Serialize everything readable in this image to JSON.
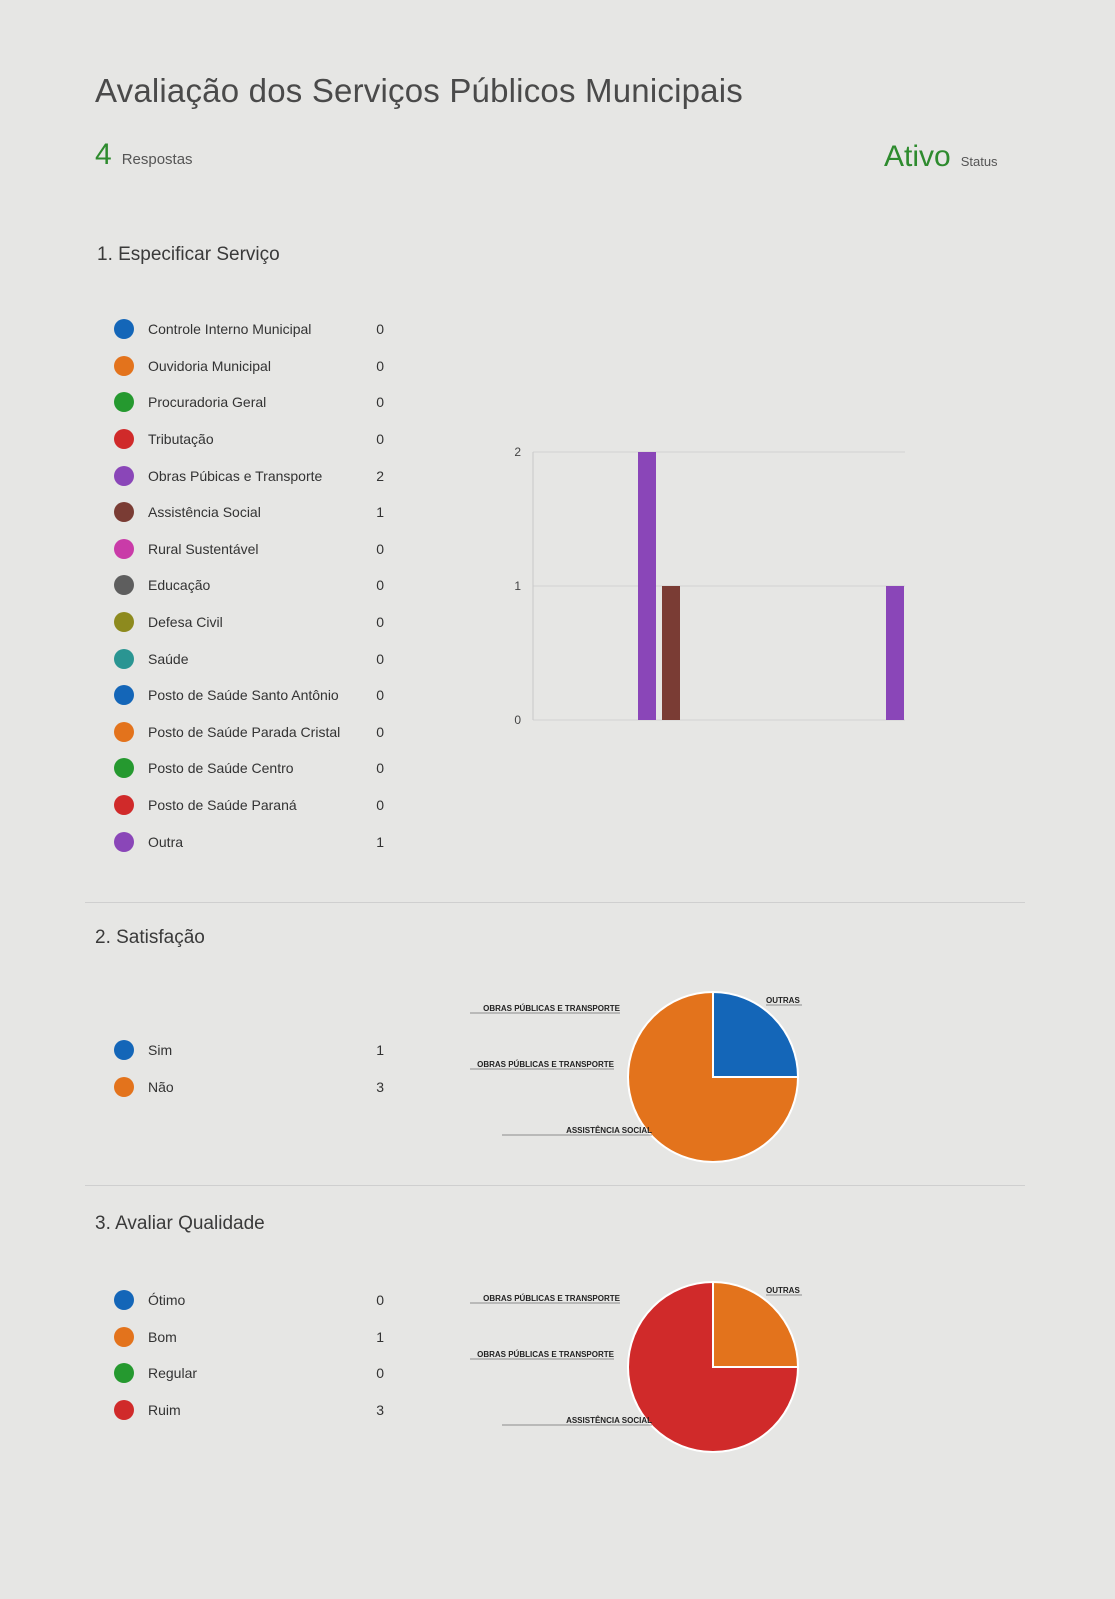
{
  "form": {
    "title": "Avaliação dos Serviços Públicos Municipais",
    "responses_count": "4",
    "responses_label": "Respostas",
    "status_value": "Ativo",
    "status_label": "Status"
  },
  "colors": {
    "blue": "#1466b8",
    "orange": "#e3731c",
    "green": "#25992f",
    "red": "#d02a2a",
    "purple": "#8a46b8",
    "brown": "#7a3c34",
    "magenta": "#c93ba8",
    "gray": "#5e5e5e",
    "olive": "#8d8a1e",
    "teal": "#2a9592"
  },
  "questions": [
    {
      "number_title": "1. Especificar Serviço",
      "options": [
        {
          "label": "Controle Interno Municipal",
          "count": "0",
          "color": "#1466b8"
        },
        {
          "label": "Ouvidoria Municipal",
          "count": "0",
          "color": "#e3731c"
        },
        {
          "label": "Procuradoria Geral",
          "count": "0",
          "color": "#25992f"
        },
        {
          "label": "Tributação",
          "count": "0",
          "color": "#d02a2a"
        },
        {
          "label": "Obras Púbicas e Transporte",
          "count": "2",
          "color": "#8a46b8"
        },
        {
          "label": "Assistência Social",
          "count": "1",
          "color": "#7a3c34"
        },
        {
          "label": "Rural Sustentável",
          "count": "0",
          "color": "#c93ba8"
        },
        {
          "label": "Educação",
          "count": "0",
          "color": "#5e5e5e"
        },
        {
          "label": "Defesa Civil",
          "count": "0",
          "color": "#8d8a1e"
        },
        {
          "label": "Saúde",
          "count": "0",
          "color": "#2a9592"
        },
        {
          "label": "Posto de Saúde Santo Antônio",
          "count": "0",
          "color": "#1466b8"
        },
        {
          "label": "Posto de Saúde Parada Cristal",
          "count": "0",
          "color": "#e3731c"
        },
        {
          "label": "Posto de Saúde Centro",
          "count": "0",
          "color": "#25992f"
        },
        {
          "label": "Posto de Saúde Paraná",
          "count": "0",
          "color": "#d02a2a"
        },
        {
          "label": "Outra",
          "count": "1",
          "color": "#8a46b8"
        }
      ]
    },
    {
      "number_title": "2. Satisfação",
      "options": [
        {
          "label": "Sim",
          "count": "1",
          "color": "#1466b8"
        },
        {
          "label": "Não",
          "count": "3",
          "color": "#e3731c"
        }
      ]
    },
    {
      "number_title": "3. Avaliar Qualidade",
      "options": [
        {
          "label": "Ótimo",
          "count": "0",
          "color": "#1466b8"
        },
        {
          "label": "Bom",
          "count": "1",
          "color": "#e3731c"
        },
        {
          "label": "Regular",
          "count": "0",
          "color": "#25992f"
        },
        {
          "label": "Ruim",
          "count": "3",
          "color": "#d02a2a"
        }
      ]
    }
  ],
  "chart_data": [
    {
      "type": "bar",
      "y_ticks": [
        "0",
        "1",
        "2"
      ],
      "ylim": [
        0,
        2
      ],
      "grid": true,
      "bars": [
        {
          "value": 2,
          "color": "#8a46b8"
        },
        {
          "value": 1,
          "color": "#7a3c34"
        },
        {
          "value": 1,
          "color": "#8a46b8"
        }
      ]
    },
    {
      "type": "pie",
      "slices": [
        {
          "value": 1,
          "color": "#1466b8"
        },
        {
          "value": 3,
          "color": "#e3731c"
        }
      ],
      "annotations": [
        "OBRAS PÚBLICAS E TRANSPORTE",
        "OUTRAS",
        "OBRAS PÚBLICAS E TRANSPORTE",
        "ASSISTÊNCIA SOCIAL"
      ]
    },
    {
      "type": "pie",
      "slices": [
        {
          "value": 1,
          "color": "#e3731c"
        },
        {
          "value": 3,
          "color": "#d02a2a"
        }
      ],
      "annotations": [
        "OBRAS PÚBLICAS E TRANSPORTE",
        "OUTRAS",
        "OBRAS PÚBLICAS E TRANSPORTE",
        "ASSISTÊNCIA SOCIAL"
      ]
    }
  ]
}
